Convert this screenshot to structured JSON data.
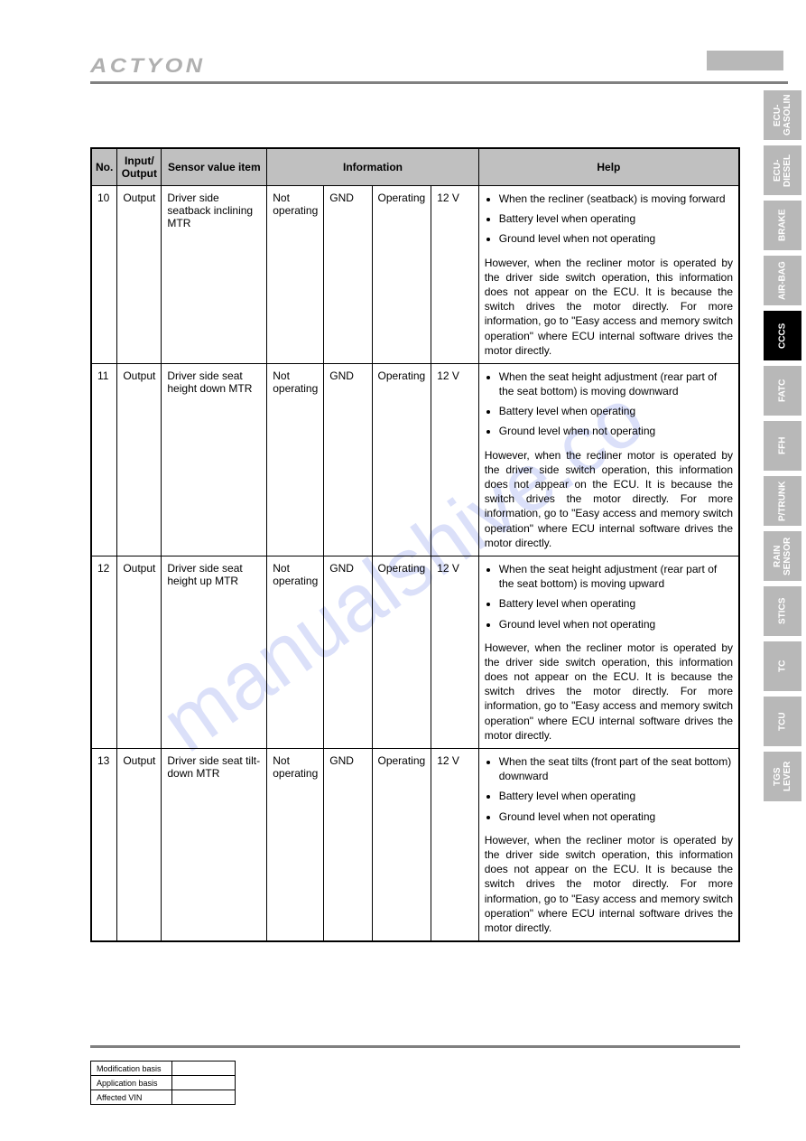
{
  "brand": "ACTYON",
  "watermark": "manualshive.co",
  "table": {
    "headers": {
      "no": "No.",
      "io": "Input/\nOutput",
      "sensor": "Sensor value item",
      "info": "Information",
      "help": "Help"
    },
    "rows": [
      {
        "no": "10",
        "io": "Output",
        "sensor": "Driver side seatback inclining MTR",
        "info": [
          "Not operating",
          "GND",
          "Operating",
          "12 V"
        ],
        "help_bullets": [
          "When the recliner (seatback) is moving forward",
          "Battery level when operating",
          "Ground level when not operating"
        ],
        "help_para": "However, when the recliner motor is operated by the driver side switch operation, this information does not appear on the ECU. It is because the switch drives the motor directly. For more information, go to \"Easy access and memory switch operation\" where ECU internal software drives the motor directly."
      },
      {
        "no": "11",
        "io": "Output",
        "sensor": "Driver side seat height down MTR",
        "info": [
          "Not operating",
          "GND",
          "Operating",
          "12 V"
        ],
        "help_bullets": [
          "When the seat height adjustment (rear part of the seat bottom) is moving downward",
          "Battery level when operating",
          "Ground level when not operating"
        ],
        "help_para": "However, when the recliner motor is operated by the driver side switch operation, this information does not appear on the ECU. It is because the switch drives the motor directly. For more information, go to \"Easy access and memory switch operation\" where ECU internal software drives the motor directly."
      },
      {
        "no": "12",
        "io": "Output",
        "sensor": "Driver side seat height up MTR",
        "info": [
          "Not operating",
          "GND",
          "Operating",
          "12 V"
        ],
        "help_bullets": [
          "When the seat height adjustment (rear part of the seat bottom) is moving upward",
          "Battery level when operating",
          "Ground level when not operating"
        ],
        "help_para": "However, when the recliner motor is operated by the driver side switch operation, this information does not appear on the ECU. It is because the switch drives the motor directly. For more information, go to \"Easy access and memory switch operation\" where ECU internal software drives the motor directly."
      },
      {
        "no": "13",
        "io": "Output",
        "sensor": "Driver side seat tilt-down MTR",
        "info": [
          "Not operating",
          "GND",
          "Operating",
          "12 V"
        ],
        "help_bullets": [
          "When the seat tilts (front part of the seat bottom) downward",
          "Battery level when operating",
          "Ground level when not operating"
        ],
        "help_para": "However, when the recliner motor is operated by the driver side switch operation, this information does not appear on the ECU. It is because the switch drives the motor directly. For more information, go to \"Easy access and memory switch operation\" where ECU internal software drives the motor directly."
      }
    ]
  },
  "side_tabs": [
    {
      "label": "ECU-\nGASOLIN",
      "active": false
    },
    {
      "label": "ECU-\nDIESEL",
      "active": false
    },
    {
      "label": "BRAKE",
      "active": false
    },
    {
      "label": "AIR-BAG",
      "active": false
    },
    {
      "label": "CCCS",
      "active": true
    },
    {
      "label": "FATC",
      "active": false
    },
    {
      "label": "FFH",
      "active": false
    },
    {
      "label": "P/TRUNK",
      "active": false
    },
    {
      "label": "RAIN\nSENSOR",
      "active": false
    },
    {
      "label": "STICS",
      "active": false
    },
    {
      "label": "TC",
      "active": false
    },
    {
      "label": "TCU",
      "active": false
    },
    {
      "label": "TGS\nLEVER",
      "active": false
    }
  ],
  "footer": {
    "rows": [
      "Modification basis",
      "Application basis",
      "Affected VIN"
    ]
  }
}
